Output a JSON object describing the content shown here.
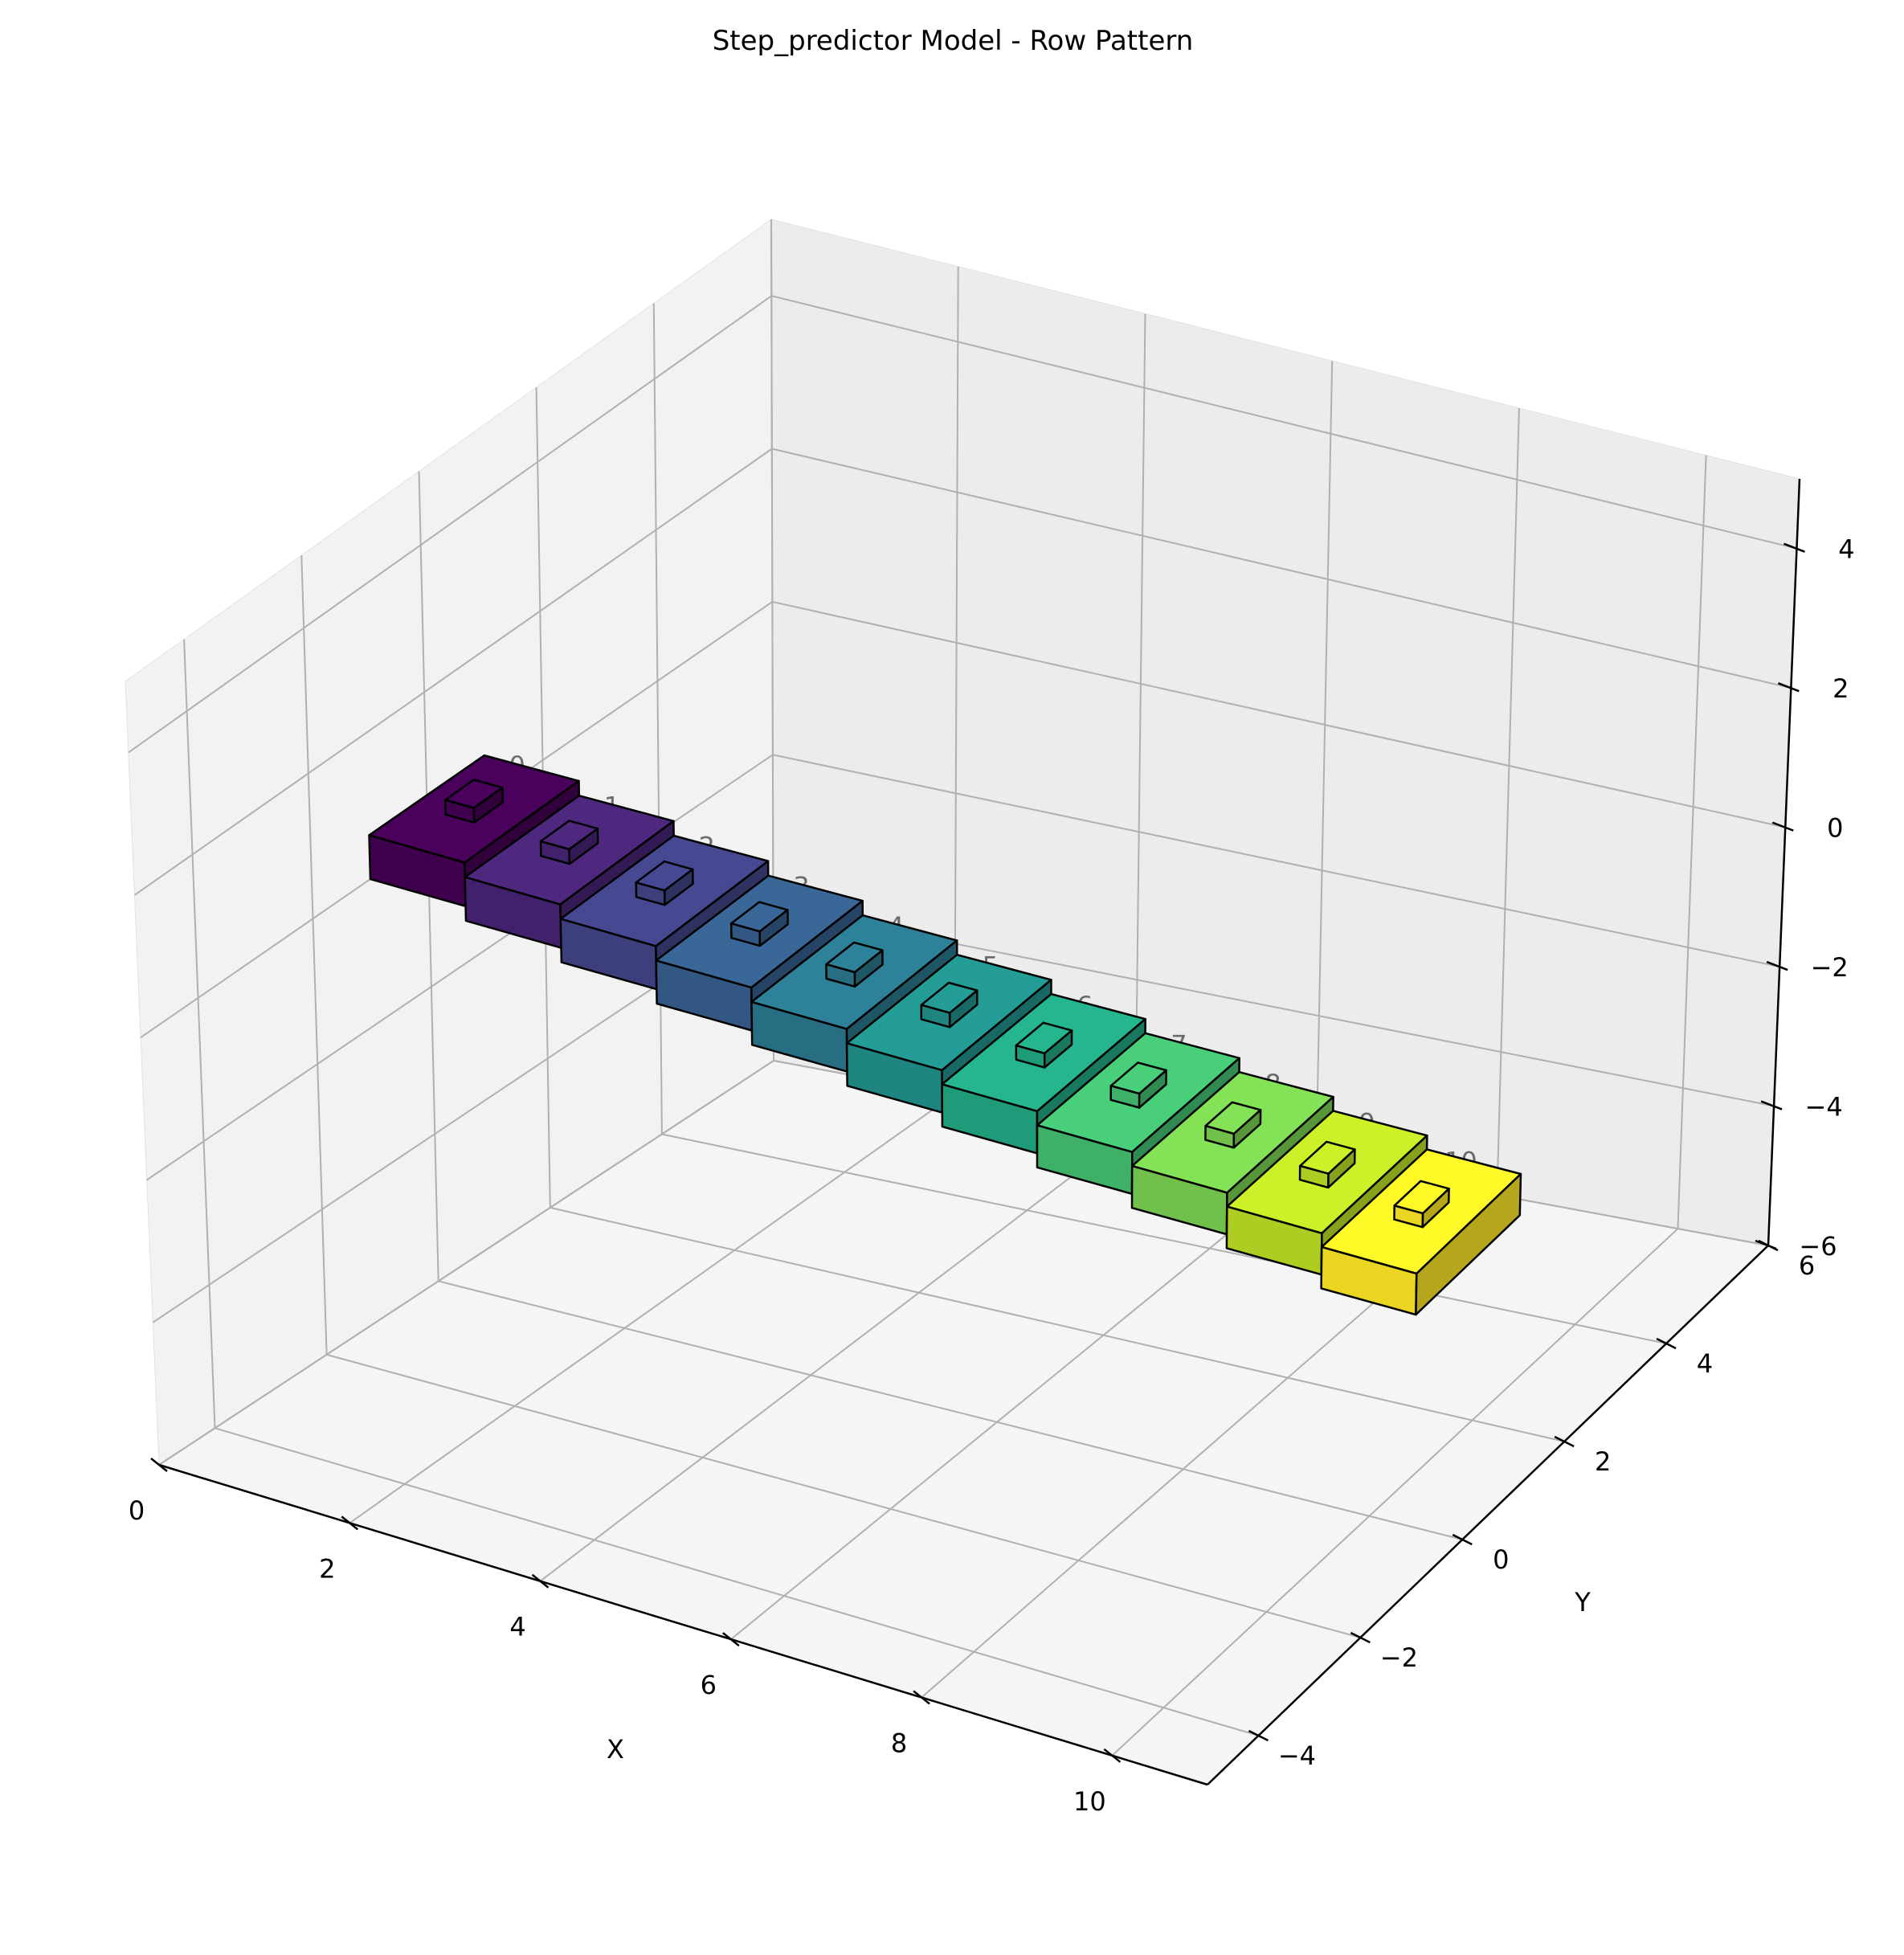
{
  "chart_data": {
    "type": "bar3d",
    "title": "Step_predictor Model - Row Pattern",
    "xlabel": "X",
    "ylabel": "Y",
    "zlabel": "",
    "xlim": [
      0,
      11
    ],
    "ylim": [
      -5,
      6
    ],
    "zlim": [
      -6,
      5
    ],
    "xticks": [
      "0",
      "2",
      "4",
      "6",
      "8",
      "10"
    ],
    "yticks": [
      "−4",
      "−2",
      "0",
      "2",
      "4",
      "6"
    ],
    "zticks": [
      "−6",
      "−4",
      "−2",
      "0",
      "2",
      "4"
    ],
    "grid": true,
    "colormap": "viridis",
    "colors": [
      "#440154",
      "#482475",
      "#414487",
      "#355f8d",
      "#2a788e",
      "#21918c",
      "#22a884",
      "#44bf70",
      "#7ad151",
      "#bddf26",
      "#fde725"
    ],
    "blocks": [
      {
        "x": 0,
        "label": "0"
      },
      {
        "x": 1,
        "label": "1"
      },
      {
        "x": 2,
        "label": "2"
      },
      {
        "x": 3,
        "label": "3"
      },
      {
        "x": 4,
        "label": "4"
      },
      {
        "x": 5,
        "label": "5"
      },
      {
        "x": 6,
        "label": "6"
      },
      {
        "x": 7,
        "label": "7"
      },
      {
        "x": 8,
        "label": "8"
      },
      {
        "x": 9,
        "label": "9"
      },
      {
        "x": 10,
        "label": "10"
      }
    ],
    "block_size": {
      "dx": 1,
      "dy": 2,
      "dz": 0.6
    },
    "block_y": 0,
    "block_z_start": 0,
    "block_z_step": -0.2,
    "cap_size": {
      "dx": 0.3,
      "dy": 0.5,
      "dz": 0.2
    }
  }
}
